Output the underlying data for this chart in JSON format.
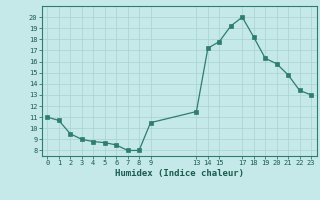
{
  "x": [
    0,
    1,
    2,
    3,
    4,
    5,
    6,
    7,
    8,
    9,
    13,
    14,
    15,
    16,
    17,
    18,
    19,
    20,
    21,
    22,
    23
  ],
  "y": [
    11.0,
    10.7,
    9.5,
    9.0,
    8.8,
    8.7,
    8.5,
    8.0,
    8.0,
    10.5,
    11.5,
    17.2,
    17.8,
    19.2,
    20.0,
    18.2,
    16.3,
    15.8,
    14.8,
    13.4,
    13.0
  ],
  "xtick_vals": [
    0,
    1,
    2,
    3,
    4,
    5,
    6,
    7,
    8,
    9,
    13,
    14,
    15,
    17,
    18,
    19,
    20,
    21,
    22,
    23
  ],
  "xtick_labels": [
    "0",
    "1",
    "2",
    "3",
    "4",
    "5",
    "6",
    "7",
    "8",
    "9",
    "13",
    "14",
    "15",
    "17",
    "18",
    "19",
    "20",
    "21",
    "22",
    "23"
  ],
  "yticks": [
    8,
    9,
    10,
    11,
    12,
    13,
    14,
    15,
    16,
    17,
    18,
    19,
    20
  ],
  "xlim": [
    -0.5,
    23.5
  ],
  "ylim": [
    7.5,
    21.0
  ],
  "xlabel": "Humidex (Indice chaleur)",
  "line_color": "#2e7d6e",
  "marker_color": "#2e7d6e",
  "bg_color": "#c5e8e8",
  "grid_color": "#aad0d0",
  "tick_label_color": "#1a5c4e",
  "xlabel_color": "#1a5c4e",
  "spine_color": "#2e7d6e"
}
